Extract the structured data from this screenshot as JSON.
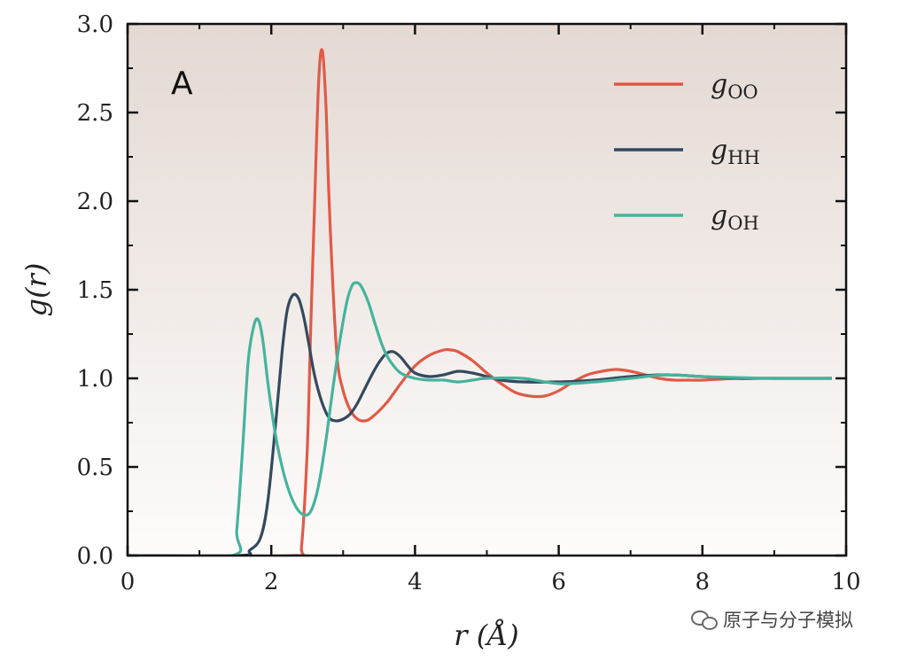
{
  "chart_data": {
    "type": "line",
    "panel_label": "A",
    "xlabel": "r (Å)",
    "ylabel": "g(r)",
    "xlim": [
      0,
      10
    ],
    "ylim": [
      0,
      3.0
    ],
    "xticks": [
      0,
      2,
      4,
      6,
      8,
      10
    ],
    "yticks": [
      0.0,
      0.5,
      1.0,
      1.5,
      2.0,
      2.5,
      3.0
    ],
    "xtick_labels": [
      "0",
      "2",
      "4",
      "6",
      "8",
      "10"
    ],
    "ytick_labels": [
      "0.0",
      "0.5",
      "1.0",
      "1.5",
      "2.0",
      "2.5",
      "3.0"
    ],
    "legend_position": "top-right",
    "series": [
      {
        "name": "gOO",
        "label_main": "g",
        "label_sub": "OO",
        "color": "#e05a47",
        "x": [
          0,
          2.35,
          2.42,
          2.5,
          2.55,
          2.6,
          2.66,
          2.71,
          2.76,
          2.8,
          2.86,
          2.92,
          3.0,
          3.1,
          3.2,
          3.3,
          3.4,
          3.6,
          3.8,
          4.0,
          4.2,
          4.4,
          4.5,
          4.6,
          4.8,
          5.0,
          5.2,
          5.4,
          5.6,
          5.8,
          6.0,
          6.2,
          6.4,
          6.6,
          6.8,
          7.0,
          7.2,
          7.4,
          7.6,
          7.8,
          8.0,
          8.5,
          9.0,
          9.5,
          9.8
        ],
        "y": [
          0,
          0,
          0.05,
          0.6,
          1.3,
          1.95,
          2.68,
          2.85,
          2.55,
          2.05,
          1.5,
          1.1,
          0.93,
          0.82,
          0.77,
          0.76,
          0.78,
          0.86,
          0.97,
          1.07,
          1.13,
          1.16,
          1.16,
          1.15,
          1.1,
          1.03,
          0.97,
          0.92,
          0.9,
          0.9,
          0.93,
          0.98,
          1.02,
          1.04,
          1.05,
          1.04,
          1.02,
          1.0,
          0.99,
          0.99,
          0.99,
          1.0,
          1.0,
          1.0,
          1.0
        ]
      },
      {
        "name": "gHH",
        "label_main": "g",
        "label_sub": "HH",
        "color": "#34495e",
        "x": [
          0,
          1.55,
          1.7,
          1.85,
          1.95,
          2.05,
          2.15,
          2.22,
          2.3,
          2.38,
          2.45,
          2.52,
          2.6,
          2.7,
          2.8,
          2.9,
          3.0,
          3.1,
          3.2,
          3.3,
          3.4,
          3.5,
          3.6,
          3.7,
          3.8,
          3.9,
          4.0,
          4.2,
          4.4,
          4.6,
          4.8,
          5.0,
          5.2,
          5.5,
          6.0,
          6.5,
          7.0,
          7.5,
          8.0,
          8.5,
          9.0,
          9.8
        ],
        "y": [
          0,
          0,
          0.03,
          0.1,
          0.3,
          0.7,
          1.15,
          1.38,
          1.47,
          1.45,
          1.35,
          1.2,
          1.02,
          0.87,
          0.78,
          0.76,
          0.77,
          0.8,
          0.86,
          0.94,
          1.02,
          1.09,
          1.14,
          1.15,
          1.12,
          1.07,
          1.03,
          1.01,
          1.02,
          1.04,
          1.03,
          1.01,
          0.99,
          0.98,
          0.98,
          0.99,
          1.01,
          1.02,
          1.01,
          1.0,
          1.0,
          1.0
        ]
      },
      {
        "name": "gOH",
        "label_main": "g",
        "label_sub": "OH",
        "color": "#45b39d",
        "x": [
          0,
          1.45,
          1.52,
          1.6,
          1.68,
          1.76,
          1.82,
          1.88,
          1.96,
          2.05,
          2.15,
          2.25,
          2.35,
          2.45,
          2.55,
          2.65,
          2.75,
          2.85,
          2.95,
          3.05,
          3.12,
          3.18,
          3.25,
          3.35,
          3.45,
          3.55,
          3.65,
          3.8,
          4.0,
          4.2,
          4.4,
          4.6,
          4.8,
          5.0,
          5.5,
          6.0,
          6.5,
          7.0,
          7.5,
          8.0,
          9.0,
          9.8
        ],
        "y": [
          0,
          0,
          0.15,
          0.6,
          1.1,
          1.3,
          1.33,
          1.22,
          0.95,
          0.7,
          0.5,
          0.36,
          0.27,
          0.23,
          0.25,
          0.38,
          0.62,
          0.92,
          1.2,
          1.43,
          1.52,
          1.54,
          1.52,
          1.43,
          1.3,
          1.18,
          1.1,
          1.03,
          1.0,
          0.99,
          0.99,
          0.98,
          0.99,
          1.0,
          1.0,
          0.97,
          0.98,
          1.0,
          1.02,
          1.01,
          1.0,
          1.0
        ]
      }
    ]
  },
  "watermark": {
    "text": "原子与分子模拟",
    "icon": "wechat-icon"
  }
}
